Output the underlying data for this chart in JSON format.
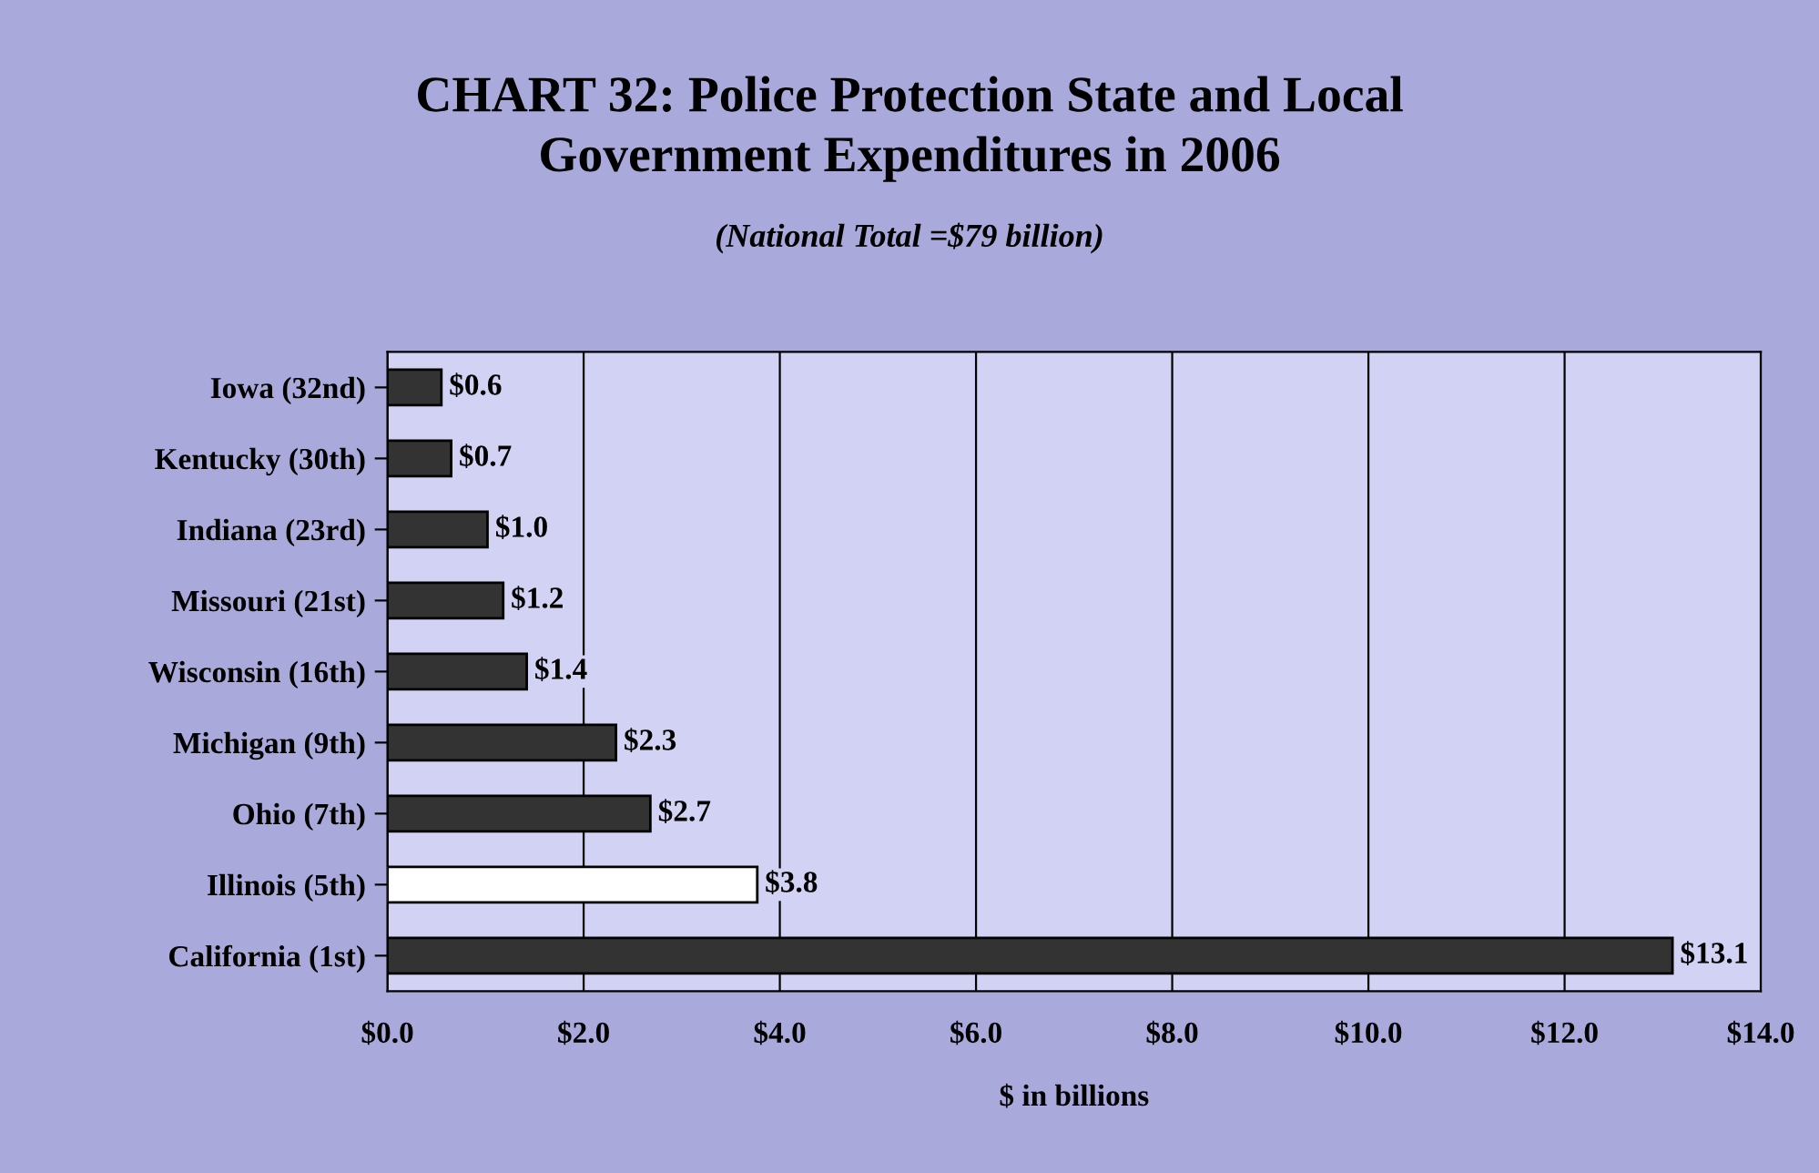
{
  "chart_data": {
    "type": "bar",
    "orientation": "horizontal",
    "title": "CHART 32: Police Protection State and Local\nGovernment Expenditures in 2006",
    "subtitle": "(National Total =$79 billion)",
    "xlabel": "$ in billions",
    "categories": [
      "Iowa (32nd)",
      "Kentucky (30th)",
      "Indiana (23rd)",
      "Missouri (21st)",
      "Wisconsin (16th)",
      "Michigan (9th)",
      "Ohio (7th)",
      "Illinois (5th)",
      "California (1st)"
    ],
    "values": [
      0.55,
      0.65,
      1.02,
      1.18,
      1.42,
      2.33,
      2.68,
      3.77,
      13.1
    ],
    "value_labels": [
      "$0.6",
      "$0.7",
      "$1.0",
      "$1.2",
      "$1.4",
      "$2.3",
      "$2.7",
      "$3.8",
      "$13.1"
    ],
    "colors": [
      "#333333",
      "#333333",
      "#333333",
      "#333333",
      "#333333",
      "#333333",
      "#333333",
      "#ffffff",
      "#333333"
    ],
    "xlim": [
      0,
      14
    ],
    "xticks": [
      {
        "value": 0,
        "label": "$0.0"
      },
      {
        "value": 2,
        "label": "$2.0"
      },
      {
        "value": 4,
        "label": "$4.0"
      },
      {
        "value": 6,
        "label": "$6.0"
      },
      {
        "value": 8,
        "label": "$8.0"
      },
      {
        "value": 10,
        "label": "$10.0"
      },
      {
        "value": 12,
        "label": "$12.0"
      },
      {
        "value": 14,
        "label": "$14.0"
      }
    ],
    "grid": "x"
  }
}
